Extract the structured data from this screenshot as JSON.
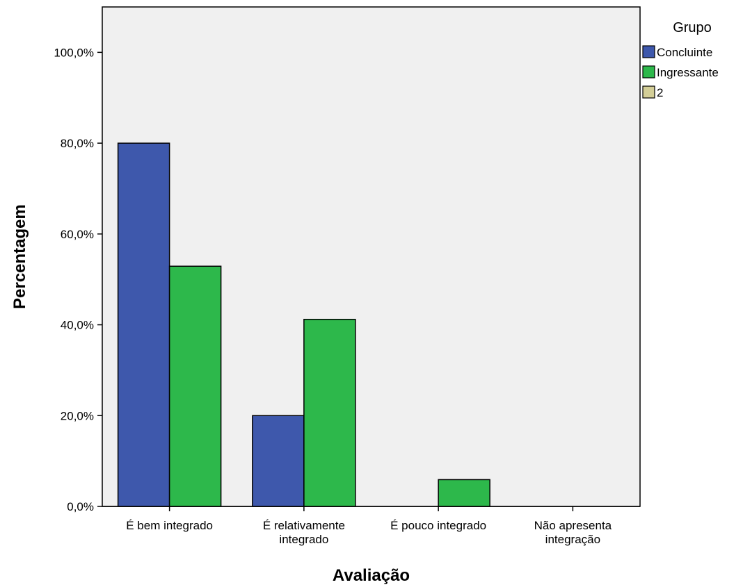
{
  "chart_data": {
    "type": "bar",
    "title": "",
    "xlabel": "Avaliação",
    "ylabel": "Percentagem",
    "categories": [
      [
        "É bem integrado"
      ],
      [
        "É relativamente",
        "integrado"
      ],
      [
        "É pouco integrado"
      ],
      [
        "Não apresenta",
        "integração"
      ]
    ],
    "series": [
      {
        "name": "Concluinte",
        "color": "#3e58ac",
        "values": [
          80.0,
          20.0,
          0.0,
          0.0
        ]
      },
      {
        "name": "Ingressante",
        "color": "#2db84b",
        "values": [
          52.9,
          41.2,
          5.9,
          0.0
        ]
      },
      {
        "name": "2",
        "color": "#d3ce97",
        "values": [
          0.0,
          0.0,
          0.0,
          0.0
        ]
      }
    ],
    "yticks": [
      0,
      20,
      40,
      60,
      80,
      100
    ],
    "ytick_labels": [
      "0,0%",
      "20,0%",
      "40,0%",
      "60,0%",
      "80,0%",
      "100,0%"
    ],
    "ylim": [
      0,
      110
    ],
    "grid": false,
    "legend_title": "Grupo",
    "legend_position": "top-right",
    "plot_background": "#f0f0f0"
  }
}
